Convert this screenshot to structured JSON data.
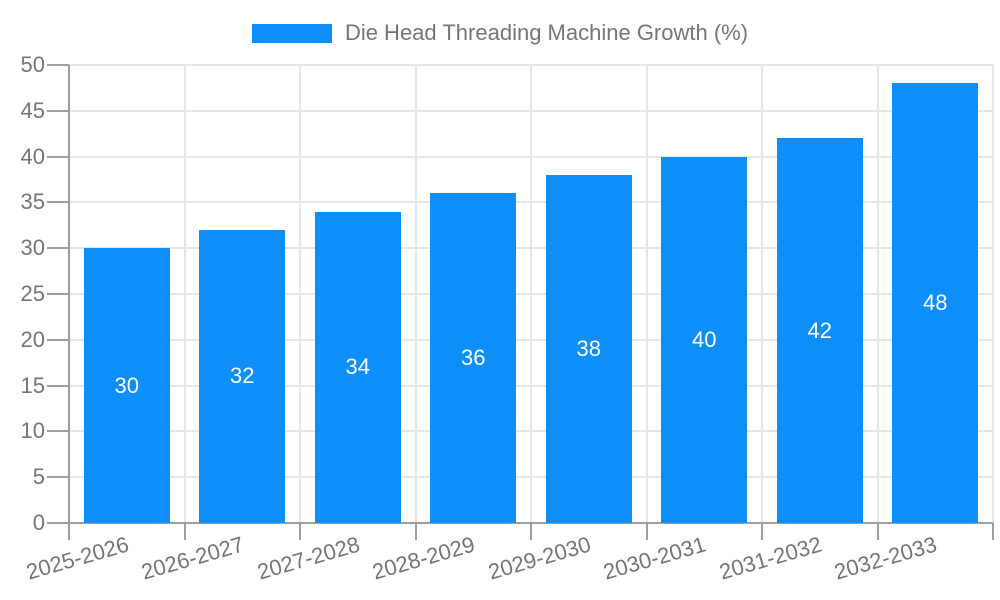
{
  "legend": {
    "label": "Die Head Threading Machine Growth (%)"
  },
  "chart_data": {
    "type": "bar",
    "title": "Die Head Threading Machine Growth (%)",
    "categories": [
      "2025-2026",
      "2026-2027",
      "2027-2028",
      "2028-2029",
      "2029-2030",
      "2030-2031",
      "2031-2032",
      "2032-2033"
    ],
    "values": [
      30,
      32,
      34,
      36,
      38,
      40,
      42,
      48
    ],
    "xlabel": "",
    "ylabel": "",
    "ylim": [
      0,
      50
    ],
    "ytick_step": 5,
    "ytick_labels": [
      "0",
      "5",
      "10",
      "15",
      "20",
      "25",
      "30",
      "35",
      "40",
      "45",
      "50"
    ],
    "grid": true,
    "legend_position": "top",
    "colors": {
      "bar": "#0d8ef8",
      "bar_label": "#ffffff",
      "axis_text": "#757575",
      "grid_line": "#e6e6e6",
      "axis_line": "#9e9e9e",
      "background": "#ffffff"
    }
  }
}
